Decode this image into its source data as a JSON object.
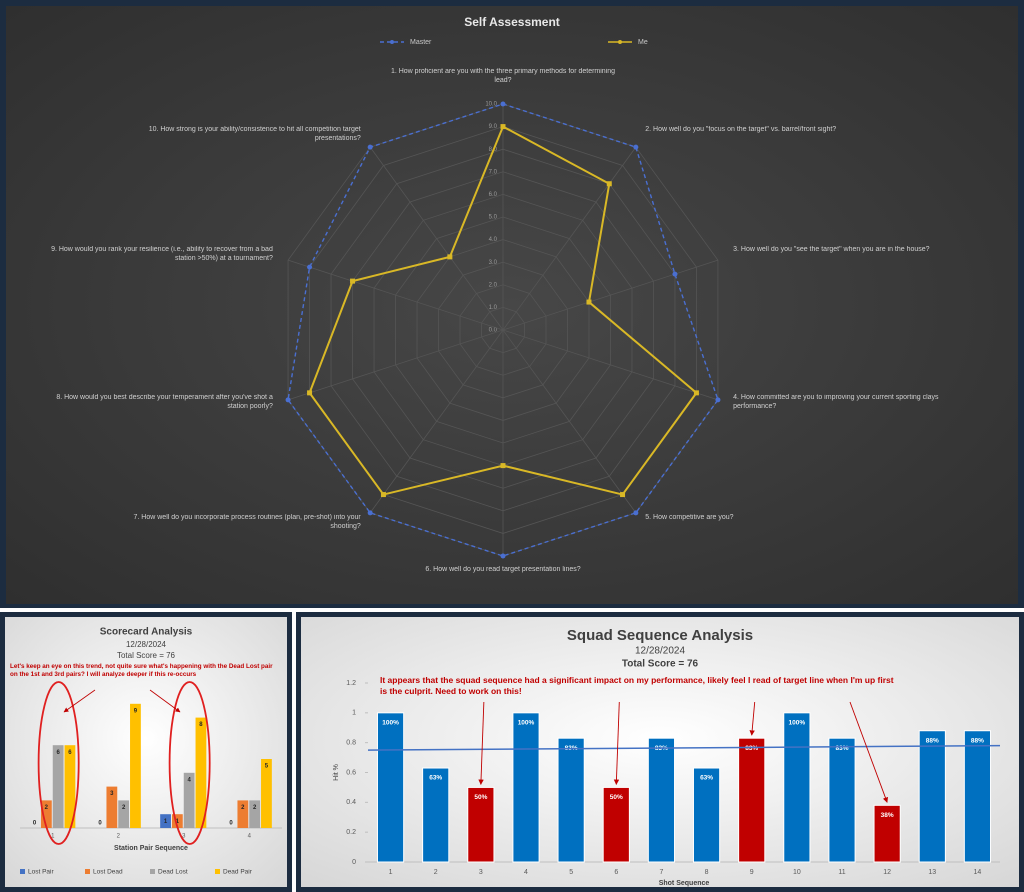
{
  "chart_data": [
    {
      "type": "radar",
      "title": "Self Assessment",
      "categories": [
        "1. How proficient are you with the three primary methods for determining lead?",
        "2. How well do you \"focus on the target\" vs. barrel/front sight?",
        "3. How well do you \"see the target\" when you are in the house?",
        "4. How committed are you to improving your current sporting clays performance?",
        "5. How competitive are you?",
        "6. How well do you read target presentation lines?",
        "7. How well do you incorporate process routines (plan, pre-shot) into your shooting?",
        "8. How would you best describe your temperament after you've shot a station poorly?",
        "9. How would you rank your resilience (i.e., ability to recover from a bad station >50%) at a tournament?",
        "10. How strong is your ability/consistence to hit all competition target presentations?"
      ],
      "series": [
        {
          "name": "Master",
          "color": "#4a6fd1",
          "line_style": "dashed",
          "values": [
            10,
            10,
            8,
            10,
            10,
            10,
            10,
            10,
            9,
            10
          ]
        },
        {
          "name": "Me",
          "color": "#d9b826",
          "line_style": "solid",
          "values": [
            9,
            8,
            4,
            9,
            9,
            6,
            9,
            9,
            7,
            4
          ]
        }
      ],
      "ylim": [
        0,
        10
      ],
      "yticks": [
        {
          "value": 0,
          "label": "0.0"
        },
        {
          "value": 1,
          "label": "1.0"
        },
        {
          "value": 2,
          "label": "2.0"
        },
        {
          "value": 3,
          "label": "3.0"
        },
        {
          "value": 4,
          "label": "4.0"
        },
        {
          "value": 5,
          "label": "5.0"
        },
        {
          "value": 6,
          "label": "6.0"
        },
        {
          "value": 7,
          "label": "7.0"
        },
        {
          "value": 8,
          "label": "8.0"
        },
        {
          "value": 9,
          "label": "9.0"
        },
        {
          "value": 10,
          "label": "10.0"
        }
      ],
      "legend": "top"
    },
    {
      "type": "grouped_bar",
      "title": "Scorecard Analysis",
      "subtitle": "12/28/2024",
      "total": "Total Score = 76",
      "annotation": "Let's keep an eye on this trend, not quite sure what's happening with the Dead Lost pair on the 1st and 3rd pairs? I will analyze deeper if this re-occurs",
      "x_label": "Station Pair Sequence",
      "categories": [
        "1",
        "2",
        "3",
        "4"
      ],
      "series": [
        {
          "name": "Lost Pair",
          "color": "#4472c4",
          "values": [
            0,
            0,
            1,
            0
          ]
        },
        {
          "name": "Lost Dead",
          "color": "#ed7d31",
          "values": [
            2,
            3,
            1,
            2
          ]
        },
        {
          "name": "Dead Lost",
          "color": "#a5a5a5",
          "values": [
            6,
            2,
            4,
            2
          ]
        },
        {
          "name": "Dead Pair",
          "color": "#ffc000",
          "values": [
            6,
            9,
            8,
            5
          ]
        }
      ],
      "ylim": [
        0,
        10
      ],
      "legend": "bottom"
    },
    {
      "type": "bar",
      "title": "Squad Sequence Analysis",
      "subtitle": "12/28/2024",
      "total": "Total Score = 76",
      "annotation": "It appears that the squad sequence had a significant impact on my performance, likely feel I read of target line when I'm up first is the culprit. Need to work on this!",
      "x_label": "Shot Sequence",
      "y_label": "Hit %",
      "categories": [
        "1",
        "2",
        "3",
        "4",
        "5",
        "6",
        "7",
        "8",
        "9",
        "10",
        "11",
        "12",
        "13",
        "14"
      ],
      "values": [
        1.0,
        0.63,
        0.5,
        1.0,
        0.83,
        0.5,
        0.83,
        0.63,
        0.83,
        1.0,
        0.83,
        0.38,
        0.88,
        0.88
      ],
      "value_labels": [
        "100%",
        "63%",
        "50%",
        "100%",
        "83%",
        "50%",
        "83%",
        "63%",
        "83%",
        "100%",
        "83%",
        "38%",
        "88%",
        "88%"
      ],
      "colors": [
        "#0070c0",
        "#0070c0",
        "#c00000",
        "#0070c0",
        "#0070c0",
        "#c00000",
        "#0070c0",
        "#0070c0",
        "#c00000",
        "#0070c0",
        "#0070c0",
        "#c00000",
        "#0070c0",
        "#0070c0"
      ],
      "trendline": [
        0.75,
        0.78
      ],
      "trend_color": "#4472c4",
      "ylim": [
        0,
        1.2
      ],
      "yticks": [
        0,
        0.2,
        0.4,
        0.6,
        0.8,
        1,
        1.2
      ]
    }
  ]
}
